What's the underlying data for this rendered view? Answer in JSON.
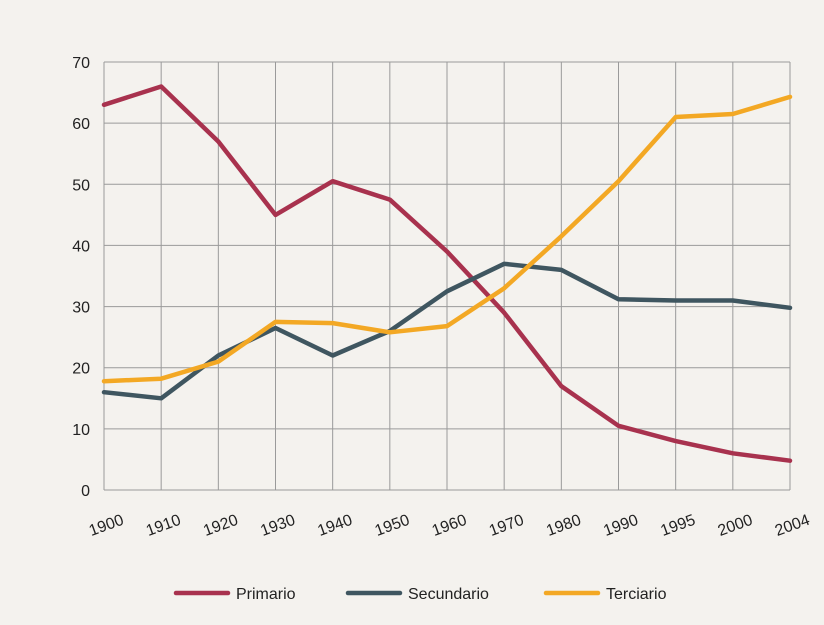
{
  "chart_data": {
    "type": "line",
    "title": "",
    "xlabel": "",
    "ylabel": "",
    "categories": [
      "1900",
      "1910",
      "1920",
      "1930",
      "1940",
      "1950",
      "1960",
      "1970",
      "1980",
      "1990",
      "1995",
      "2000",
      "2004"
    ],
    "ylim": [
      0,
      70
    ],
    "yticks": [
      0,
      10,
      20,
      30,
      40,
      50,
      60,
      70
    ],
    "grid": true,
    "legend_position": "bottom",
    "series": [
      {
        "name": "Primario",
        "color": "#a8324e",
        "values": [
          63,
          66,
          57,
          45,
          50.5,
          47.5,
          39,
          29,
          17,
          10.5,
          8,
          6,
          4.8
        ]
      },
      {
        "name": "Secundario",
        "color": "#3f5660",
        "values": [
          16,
          15,
          22,
          26.5,
          22,
          26,
          32.5,
          37,
          36,
          31.2,
          31,
          31,
          29.8
        ]
      },
      {
        "name": "Terciario",
        "color": "#f3a824",
        "values": [
          17.8,
          18.2,
          21,
          27.5,
          27.3,
          25.8,
          26.8,
          33,
          41.5,
          50.5,
          61,
          61.5,
          64.3
        ]
      }
    ]
  }
}
